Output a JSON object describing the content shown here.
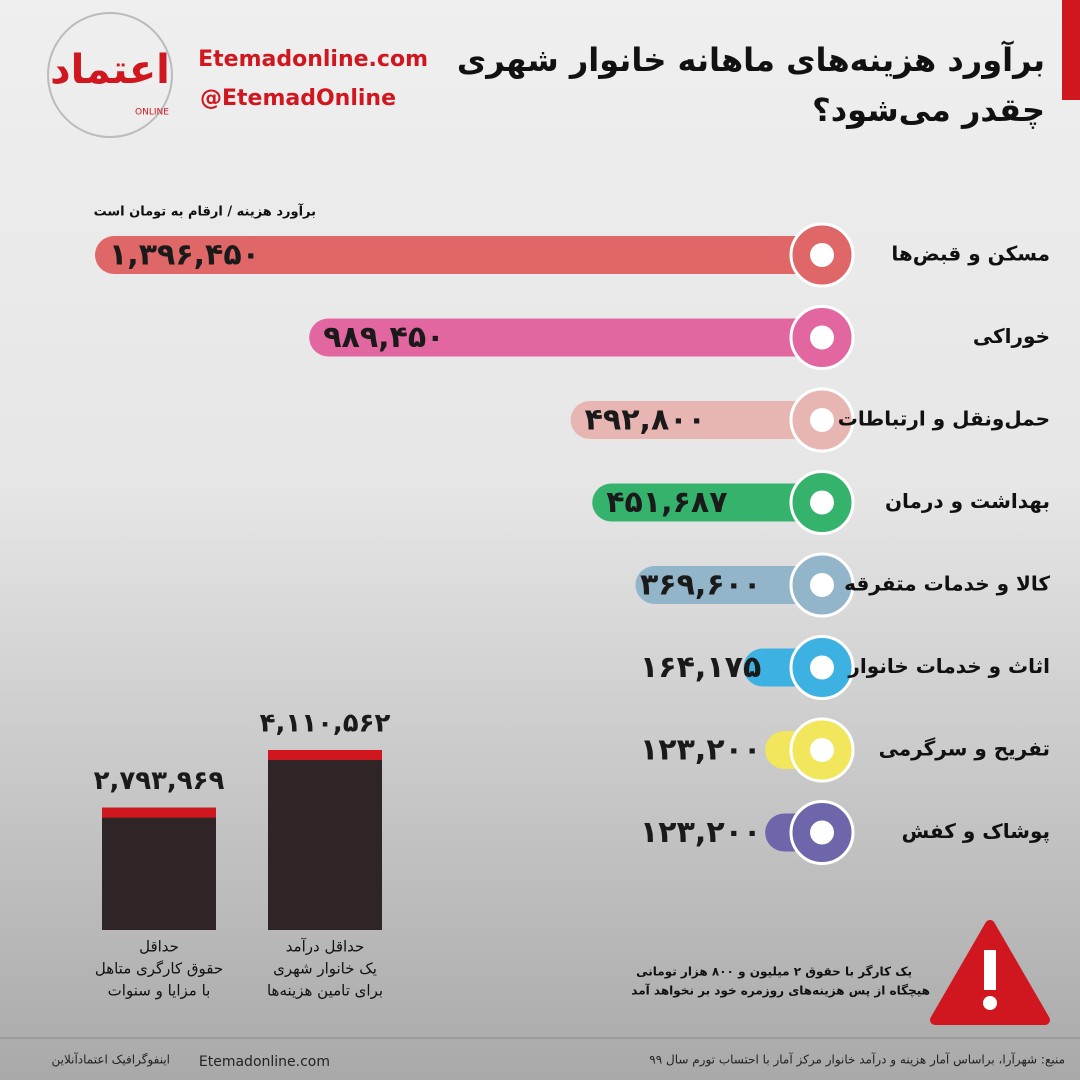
{
  "logo": {
    "name": "اعتماد",
    "tag": "ONLINE",
    "site": "Etemadonline.com",
    "handle": "@EtemadOnline"
  },
  "header": {
    "title": [
      "برآورد هزینه‌های ماهانه خانوار شهری",
      "چقدر می‌شود؟"
    ],
    "subtitle": "برآورد هزینه / ارقام به تومان است"
  },
  "chart_data": [
    {
      "type": "hbar",
      "categories": [
        "مسکن و قبض‌ها",
        "خوراکی",
        "حمل‌ونقل و ارتباطات",
        "بهداشت و درمان",
        "کالا و خدمات متفرقه",
        "اثاث و خدمات خانوار",
        "تفریح و سرگرمی",
        "پوشاک و کفش"
      ],
      "values": [
        1396450,
        989450,
        492800,
        451687,
        369600,
        164175,
        123200,
        123200
      ],
      "value_labels": [
        "۱,۳۹۶,۴۵۰",
        "۹۸۹,۴۵۰",
        "۴۹۲,۸۰۰",
        "۴۵۱,۶۸۷",
        "۳۶۹,۶۰۰",
        "۱۶۴,۱۷۵",
        "۱۲۳,۲۰۰",
        "۱۲۳,۲۰۰"
      ],
      "colors": [
        "#e06767",
        "#e2669f",
        "#e8b6b2",
        "#35b36d",
        "#93b5c9",
        "#3db2e2",
        "#f1e65c",
        "#6e66aa"
      ]
    },
    {
      "type": "bar",
      "categories": [
        [
          "حداقل",
          "حقوق کارگری متاهل",
          "با مزایا و سنوات"
        ],
        [
          "حداقل درآمد",
          "یک خانوار شهری",
          "برای تامین هزینه‌ها"
        ]
      ],
      "values": [
        2793969,
        4110562
      ],
      "value_labels": [
        "۲,۷۹۳,۹۶۹",
        "۴,۱۱۰,۵۶۲"
      ],
      "color": "#2f2526",
      "cap_color": "#d0171f"
    }
  ],
  "note": [
    "یک کارگر با حقوق ۲ میلیون و ۸۰۰ هزار تومانی",
    "هیچگاه از پس هزینه‌های روزمره خود بر نخواهد آمد"
  ],
  "footer": {
    "source": "منبع: شهرآرا، براساس آمار هزینه و درآمد خانوار مرکز آمار با احتساب تورم سال ۹۹",
    "site": "Etemadonline.com",
    "credit": "اینفوگرافیک اعتمادآنلاین"
  }
}
